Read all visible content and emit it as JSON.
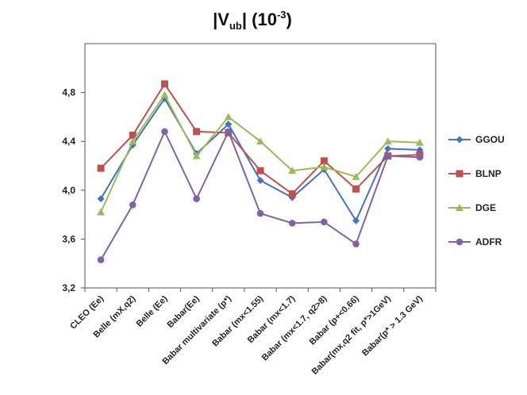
{
  "chart_data": {
    "type": "line",
    "title": {
      "prefix": "|V",
      "subscript": "ub",
      "suffix": "|  (10",
      "superscript": "-3",
      "close": ")"
    },
    "xlabel": "",
    "ylabel": "",
    "ylim": [
      3.2,
      5.2
    ],
    "yticks": [
      3.2,
      3.6,
      4.0,
      4.4,
      4.8
    ],
    "ytick_labels": [
      "3,2",
      "3,6",
      "4,0",
      "4,4",
      "4,8"
    ],
    "grid": false,
    "legend_position": "right",
    "categories": [
      "CLEO (Ee)",
      "Belle (mX,q2)",
      "Belle (Ee)",
      "Babar(Ee)",
      "Babar multivariate (p*)",
      "Babar (mx<1.55)",
      "Babar (mx<1.7)",
      "Babar (mx<1.7, q2>8)",
      "Babar (p+<0.66)",
      "Babar(mx,q2 fit, p*>1GeV)",
      "Babar(p* > 1.3 GeV)"
    ],
    "series": [
      {
        "name": "GGOU",
        "color": "#4472c4",
        "marker": "diamond",
        "values": [
          3.93,
          4.37,
          4.75,
          4.3,
          4.54,
          4.08,
          3.94,
          4.17,
          3.75,
          4.34,
          4.33
        ]
      },
      {
        "name": "BLNP",
        "color": "#c0504d",
        "marker": "square",
        "values": [
          4.18,
          4.45,
          4.87,
          4.48,
          4.47,
          4.16,
          3.97,
          4.24,
          4.01,
          4.28,
          4.29
        ]
      },
      {
        "name": "DGE",
        "color": "#9bbb59",
        "marker": "triangle",
        "values": [
          3.82,
          4.4,
          4.78,
          4.28,
          4.6,
          4.4,
          4.16,
          4.19,
          4.11,
          4.4,
          4.39
        ]
      },
      {
        "name": "ADFR",
        "color": "#8064a2",
        "marker": "circle",
        "values": [
          3.43,
          3.88,
          4.48,
          3.93,
          4.48,
          3.81,
          3.73,
          3.74,
          3.56,
          4.28,
          4.27
        ]
      }
    ]
  }
}
